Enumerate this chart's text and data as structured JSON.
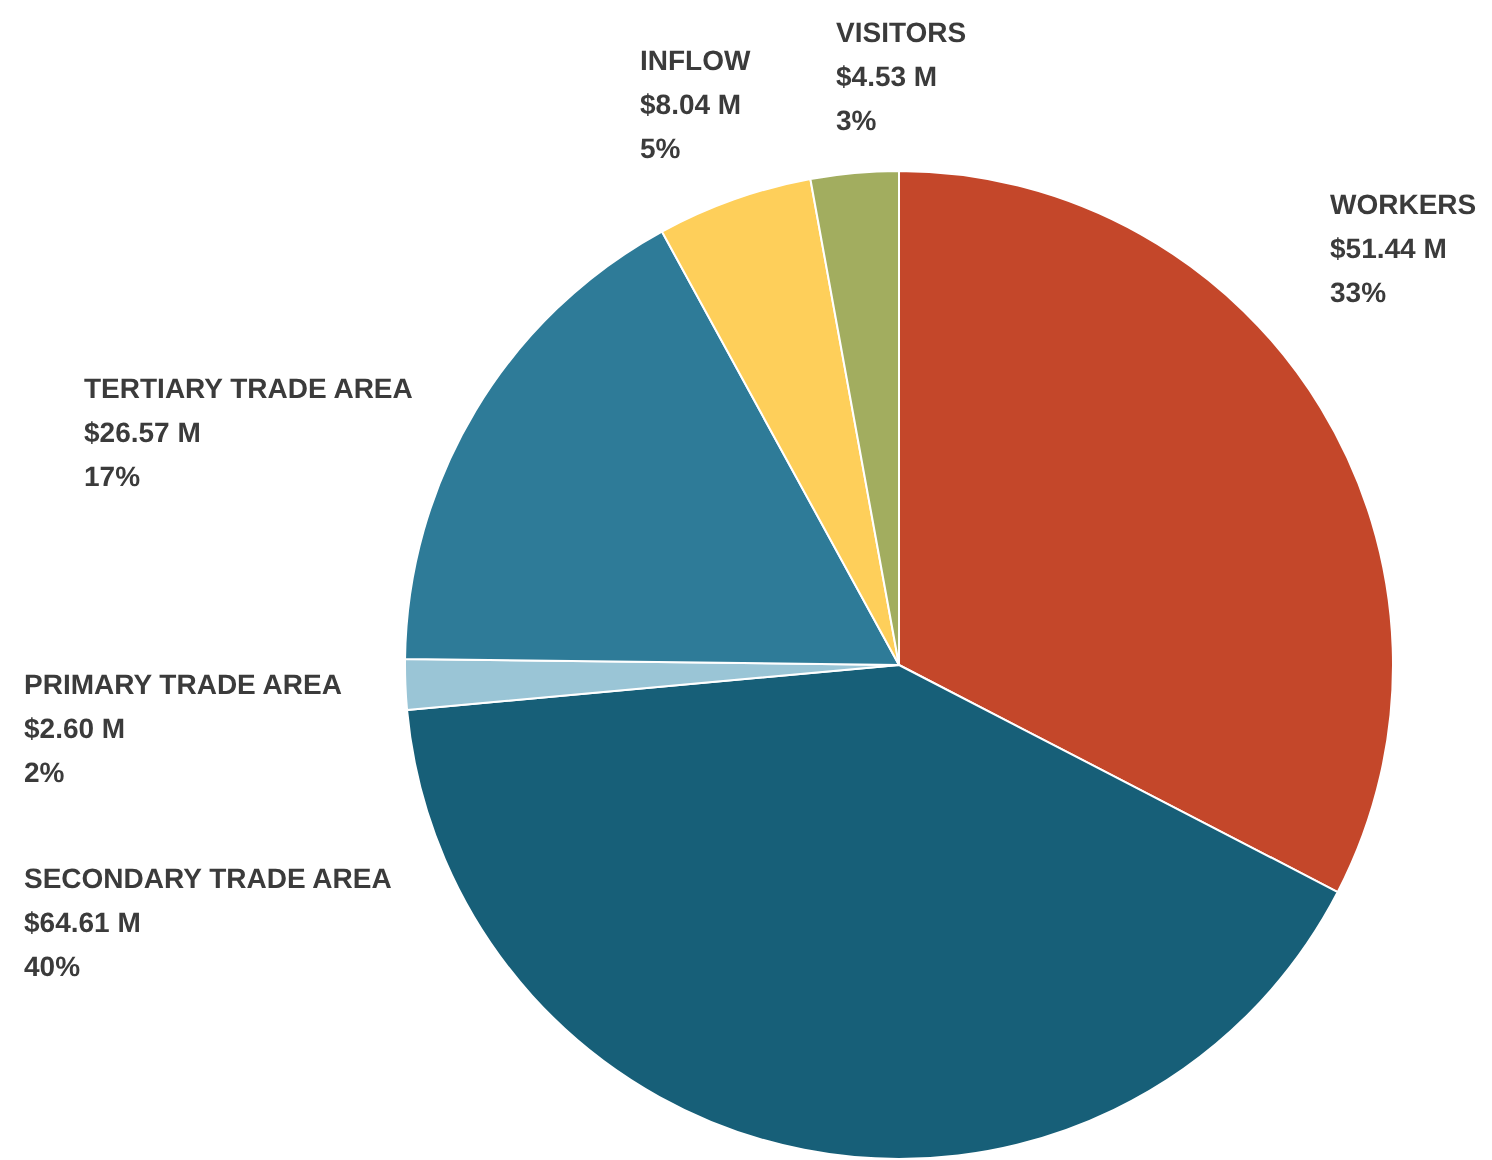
{
  "chart_data": {
    "type": "pie",
    "categories": [
      "WORKERS",
      "SECONDARY TRADE AREA",
      "PRIMARY TRADE AREA",
      "TERTIARY TRADE AREA",
      "INFLOW",
      "VISITORS"
    ],
    "values": [
      51.44,
      64.61,
      2.6,
      26.57,
      8.04,
      4.53
    ],
    "colors": [
      "#c4472a",
      "#175f78",
      "#9ac5d6",
      "#2e7b98",
      "#fecf5a",
      "#a2ad5f"
    ],
    "value_labels": [
      "$51.44 M\n33%",
      "$64.61 M\n40%",
      "$2.60 M\n2%",
      "$26.57 M\n17%",
      "$8.04 M\n5%",
      "$4.53 M\n3%"
    ],
    "legend": false
  }
}
